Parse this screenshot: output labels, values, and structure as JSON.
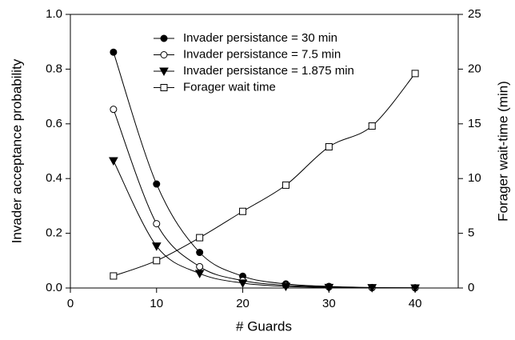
{
  "chart_data": {
    "type": "line",
    "x": [
      5,
      10,
      15,
      20,
      25,
      30,
      35,
      40
    ],
    "xlabel": "# Guards",
    "ylabel": "Invader acceptance probability",
    "y2label": "Forager wait-time (min)",
    "xlim": [
      0,
      45
    ],
    "xticks": [
      0,
      10,
      20,
      30,
      40
    ],
    "ylim": [
      0,
      1
    ],
    "yticks": [
      {
        "value": 0,
        "label": "0.0"
      },
      {
        "value": 0.2,
        "label": "0.2"
      },
      {
        "value": 0.4,
        "label": "0.4"
      },
      {
        "value": 0.6,
        "label": "0.6"
      },
      {
        "value": 0.8,
        "label": "0.8"
      },
      {
        "value": 1,
        "label": "1.0"
      }
    ],
    "y2lim": [
      0,
      25
    ],
    "y2ticks": [
      0,
      5,
      10,
      15,
      20,
      25
    ],
    "legend": "top",
    "series": [
      {
        "name": "Invader persistance = 30 min",
        "color": "#000000",
        "marker": "circle",
        "filled": true,
        "values": [
          0.862,
          0.38,
          0.13,
          0.043,
          0.015,
          0.006,
          0.002,
          0.001
        ]
      },
      {
        "name": "Invader persistance = 7.5 min",
        "color": "#000000",
        "marker": "circle",
        "filled": false,
        "values": [
          0.653,
          0.235,
          0.078,
          0.027,
          0.01,
          0.004,
          0.001,
          0.0005
        ]
      },
      {
        "name": "Invader persistance = 1.875 min",
        "color": "#000000",
        "marker": "triangle-down",
        "filled": true,
        "values": [
          0.465,
          0.153,
          0.053,
          0.018,
          0.006,
          0.002,
          0.001,
          0
        ]
      },
      {
        "name": "Forager wait time",
        "color": "#000000",
        "marker": "square",
        "filled": false,
        "axis": "y2",
        "values": [
          1.1,
          2.5,
          4.6,
          7.0,
          9.4,
          12.9,
          14.8,
          19.6
        ]
      }
    ]
  }
}
